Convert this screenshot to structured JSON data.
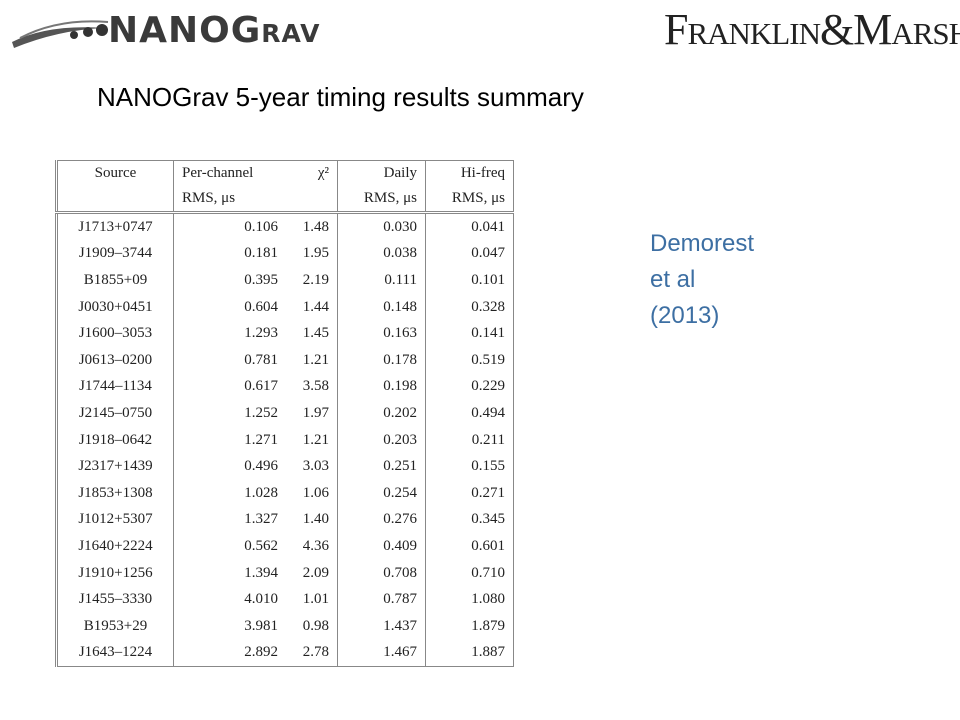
{
  "header": {
    "logo_left": "NANOGrav",
    "logo_right": "Franklin&Marshall"
  },
  "title": "NANOGrav 5-year timing results summary",
  "citation": [
    "Demorest",
    "et al",
    "(2013)"
  ],
  "table": {
    "header": [
      [
        "Source",
        "Per-channel",
        "χ²",
        "Daily",
        "Hi-freq"
      ],
      [
        "RMS, μs",
        "RMS, μs",
        "RMS, μs"
      ]
    ],
    "rows": [
      [
        "J1713+0747",
        "0.106",
        "1.48",
        "0.030",
        "0.041"
      ],
      [
        "J1909–3744",
        "0.181",
        "1.95",
        "0.038",
        "0.047"
      ],
      [
        "B1855+09",
        "0.395",
        "2.19",
        "0.111",
        "0.101"
      ],
      [
        "J0030+0451",
        "0.604",
        "1.44",
        "0.148",
        "0.328"
      ],
      [
        "J1600–3053",
        "1.293",
        "1.45",
        "0.163",
        "0.141"
      ],
      [
        "J0613–0200",
        "0.781",
        "1.21",
        "0.178",
        "0.519"
      ],
      [
        "J1744–1134",
        "0.617",
        "3.58",
        "0.198",
        "0.229"
      ],
      [
        "J2145–0750",
        "1.252",
        "1.97",
        "0.202",
        "0.494"
      ],
      [
        "J1918–0642",
        "1.271",
        "1.21",
        "0.203",
        "0.211"
      ],
      [
        "J2317+1439",
        "0.496",
        "3.03",
        "0.251",
        "0.155"
      ],
      [
        "J1853+1308",
        "1.028",
        "1.06",
        "0.254",
        "0.271"
      ],
      [
        "J1012+5307",
        "1.327",
        "1.40",
        "0.276",
        "0.345"
      ],
      [
        "J1640+2224",
        "0.562",
        "4.36",
        "0.409",
        "0.601"
      ],
      [
        "J1910+1256",
        "1.394",
        "2.09",
        "0.708",
        "0.710"
      ],
      [
        "J1455–3330",
        "4.010",
        "1.01",
        "0.787",
        "1.080"
      ],
      [
        "B1953+29",
        "3.981",
        "0.98",
        "1.437",
        "1.879"
      ],
      [
        "J1643–1224",
        "2.892",
        "2.78",
        "1.467",
        "1.887"
      ]
    ]
  }
}
